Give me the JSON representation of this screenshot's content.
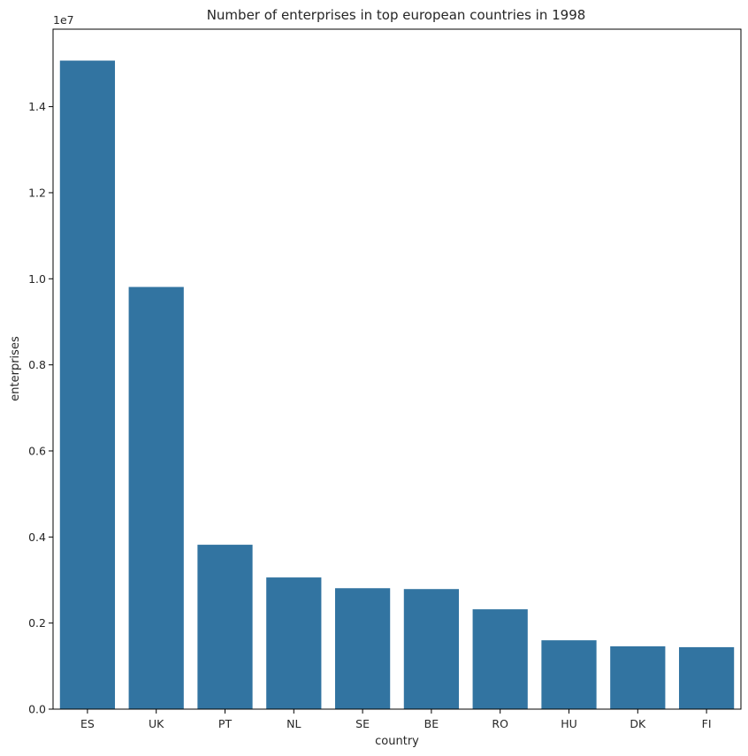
{
  "chart_data": {
    "type": "bar",
    "title": "Number of enterprises in top european countries in 1998",
    "xlabel": "country",
    "ylabel": "enterprises",
    "y_scale_label": "1e7",
    "categories": [
      "ES",
      "UK",
      "PT",
      "NL",
      "SE",
      "BE",
      "RO",
      "HU",
      "DK",
      "FI"
    ],
    "values": [
      15070000,
      9810000,
      3820000,
      3060000,
      2810000,
      2790000,
      2320000,
      1600000,
      1460000,
      1440000
    ],
    "ylim": [
      0,
      15800000
    ],
    "yticks": [
      0,
      2000000,
      4000000,
      6000000,
      8000000,
      10000000,
      12000000,
      14000000
    ],
    "ytick_labels": [
      "0.0",
      "0.2",
      "0.4",
      "0.6",
      "0.8",
      "1.0",
      "1.2",
      "1.4"
    ],
    "grid": false,
    "colors": {
      "bar": "#3274a1"
    }
  }
}
